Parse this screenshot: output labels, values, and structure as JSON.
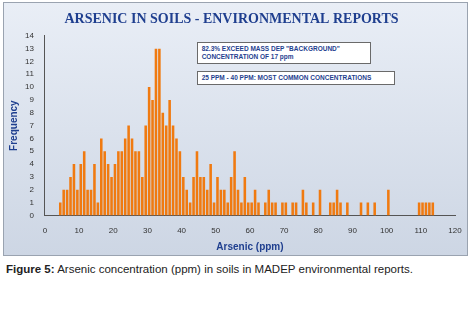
{
  "chart_data": {
    "type": "histogram",
    "title": "ARSENIC IN SOILS - ENVIRONMENTAL REPORTS",
    "x_label": "Arsenic (ppm)",
    "y_label": "Frequency",
    "annotations": [
      "82.3% EXCEED MASS DEP \"BACKGROUND\" CONCENTRATION OF 17 ppm",
      "25 PPM - 40 PPM: MOST COMMON CONCENTRATIONS"
    ],
    "bins": [
      4,
      5,
      6,
      7,
      8,
      9,
      10,
      11,
      12,
      13,
      14,
      15,
      16,
      17,
      18,
      19,
      20,
      21,
      22,
      23,
      24,
      25,
      26,
      27,
      28,
      29,
      30,
      31,
      32,
      33,
      34,
      35,
      36,
      37,
      38,
      39,
      40,
      41,
      42,
      43,
      44,
      45,
      46,
      47,
      48,
      49,
      50,
      51,
      52,
      53,
      54,
      55,
      56,
      57,
      58,
      59,
      60,
      61,
      62,
      63,
      64,
      65,
      66,
      67,
      68,
      69,
      70,
      71,
      72,
      73,
      74,
      75,
      76,
      77,
      78,
      79,
      80,
      81,
      82,
      83,
      84,
      85,
      86,
      87,
      88,
      89,
      90,
      91,
      92,
      93,
      94,
      95,
      96,
      97,
      98,
      99,
      100,
      101,
      102,
      103,
      104,
      105,
      106,
      107,
      108,
      109,
      110,
      111,
      112,
      113,
      114
    ],
    "values": [
      1,
      2,
      2,
      3,
      4,
      2,
      4,
      5,
      2,
      2,
      4,
      1,
      6,
      5,
      4,
      3,
      4,
      5,
      5,
      6,
      7,
      6,
      5,
      5,
      3,
      7,
      10,
      9,
      13,
      13,
      8,
      7,
      9,
      7,
      6,
      5,
      3,
      2,
      1,
      3,
      5,
      3,
      3,
      2,
      4,
      1,
      3,
      2,
      2,
      1,
      3,
      5,
      2,
      1,
      3,
      1,
      1,
      2,
      1,
      0,
      1,
      2,
      1,
      1,
      0,
      1,
      1,
      0,
      1,
      1,
      0,
      2,
      1,
      0,
      1,
      0,
      2,
      0,
      0,
      1,
      1,
      2,
      1,
      0,
      1,
      0,
      0,
      0,
      1,
      0,
      1,
      0,
      1,
      0,
      0,
      0,
      2,
      0,
      0,
      0,
      0,
      0,
      0,
      0,
      0,
      1,
      1,
      1,
      1,
      1
    ],
    "color": "#f07a10",
    "xlim": [
      0,
      120
    ],
    "xticks": [
      0,
      10,
      20,
      30,
      40,
      50,
      60,
      70,
      80,
      90,
      100,
      110,
      120
    ],
    "ylim": [
      0,
      14
    ],
    "yticks": [
      0,
      1,
      2,
      3,
      4,
      5,
      6,
      7,
      8,
      9,
      10,
      11,
      12,
      13,
      14
    ],
    "grid": false
  },
  "caption": {
    "label": "Figure 5:",
    "text": "Arsenic concentration (ppm) in soils in MADEP environmental reports."
  }
}
